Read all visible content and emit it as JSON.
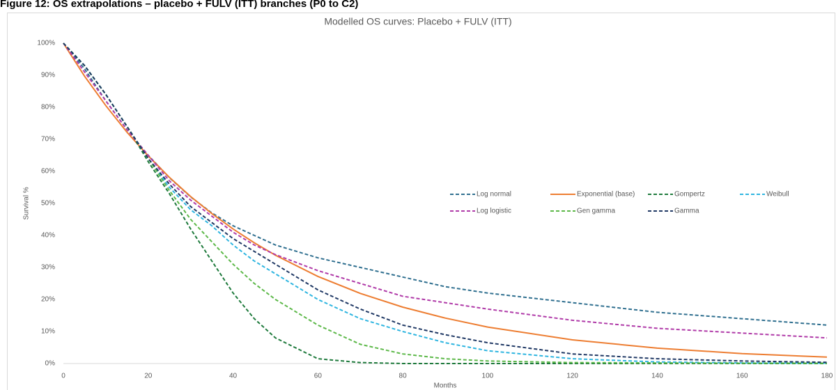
{
  "caption": "Figure 12: OS extrapolations – placebo + FULV (ITT) branches (P0 to C2)",
  "chart_data": {
    "type": "line",
    "title": "Modelled OS curves: Placebo + FULV (ITT)",
    "x_label": "Months",
    "y_label": "Survival %",
    "x": [
      0,
      5,
      10,
      15,
      20,
      25,
      30,
      35,
      40,
      45,
      50,
      60,
      70,
      80,
      90,
      100,
      120,
      140,
      160,
      180
    ],
    "xlim": [
      0,
      180
    ],
    "xticks": [
      0,
      20,
      40,
      60,
      80,
      100,
      120,
      140,
      160,
      180
    ],
    "ylim": [
      0,
      100
    ],
    "yticks": [
      {
        "value": 0,
        "label": "0%"
      },
      {
        "value": 10,
        "label": "10%"
      },
      {
        "value": 20,
        "label": "20%"
      },
      {
        "value": 30,
        "label": "30%"
      },
      {
        "value": 40,
        "label": "40%"
      },
      {
        "value": 50,
        "label": "50%"
      },
      {
        "value": 60,
        "label": "60%"
      },
      {
        "value": 70,
        "label": "70%"
      },
      {
        "value": 80,
        "label": "80%"
      },
      {
        "value": 90,
        "label": "90%"
      },
      {
        "value": 100,
        "label": "100%"
      }
    ],
    "grid": false,
    "legend": "right",
    "series": [
      {
        "name": "Log normal",
        "color": "#2f6f8f",
        "dashed": true,
        "values": [
          100,
          92,
          82,
          73,
          65,
          58,
          52,
          47,
          43,
          40,
          37,
          33,
          30,
          27,
          24,
          22,
          19,
          16,
          14,
          12
        ]
      },
      {
        "name": "Exponential (base)",
        "color": "#ed7d31",
        "dashed": false,
        "values": [
          100,
          89.7,
          80.5,
          72.2,
          64.8,
          58.1,
          52.1,
          46.8,
          42,
          37.7,
          33.8,
          27.2,
          21.9,
          17.6,
          14.2,
          11.4,
          7.4,
          4.8,
          3.1,
          2
        ]
      },
      {
        "name": "Gompertz",
        "color": "#1e7a3c",
        "dashed": true,
        "values": [
          100,
          93,
          84,
          74,
          63,
          53,
          42,
          32,
          22,
          14,
          8,
          1.5,
          0.3,
          0,
          0,
          0,
          0,
          0,
          0,
          0
        ]
      },
      {
        "name": "Weibull",
        "color": "#2eb5e0",
        "dashed": true,
        "values": [
          100,
          93,
          84,
          74,
          64,
          55,
          48,
          43,
          37,
          32,
          28,
          20,
          14,
          10,
          6.5,
          4,
          1.5,
          0.5,
          0.2,
          0.1
        ]
      },
      {
        "name": "Log logistic",
        "color": "#b03aa8",
        "dashed": true,
        "values": [
          100,
          91,
          82,
          73,
          65,
          57,
          51,
          46,
          41,
          37,
          34,
          29,
          25,
          21,
          19,
          17,
          13.5,
          11,
          9.5,
          8
        ]
      },
      {
        "name": "Gen gamma",
        "color": "#5cb848",
        "dashed": true,
        "values": [
          100,
          93,
          84,
          74,
          64,
          54,
          45,
          38,
          31,
          25,
          20,
          12,
          6,
          3,
          1.5,
          0.8,
          0.3,
          0.2,
          0.1,
          0.1
        ]
      },
      {
        "name": "Gamma",
        "color": "#1f3864",
        "dashed": true,
        "values": [
          100,
          93,
          84,
          74,
          64,
          56,
          49,
          44,
          39,
          35,
          31,
          23,
          17,
          12,
          9,
          6.5,
          3,
          1.5,
          0.8,
          0.4
        ]
      }
    ]
  }
}
